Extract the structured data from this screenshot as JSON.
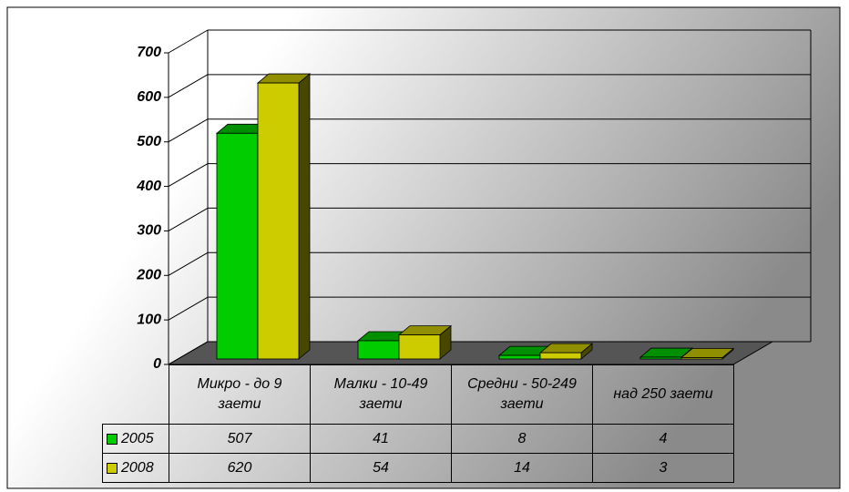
{
  "chart_data": {
    "type": "bar3d",
    "categories": [
      "Микро - до 9 заети",
      "Малки - 10-49 заети",
      "Средни - 50-249 заети",
      "над 250 заети"
    ],
    "series": [
      {
        "name": "2005",
        "color": "#00cc00",
        "values": [
          507,
          41,
          8,
          4
        ]
      },
      {
        "name": "2008",
        "color": "#cccc00",
        "values": [
          620,
          54,
          14,
          3
        ]
      }
    ],
    "ylim": [
      0,
      700
    ],
    "yticks": [
      0,
      100,
      200,
      300,
      400,
      500,
      600,
      700
    ],
    "grid": true
  }
}
